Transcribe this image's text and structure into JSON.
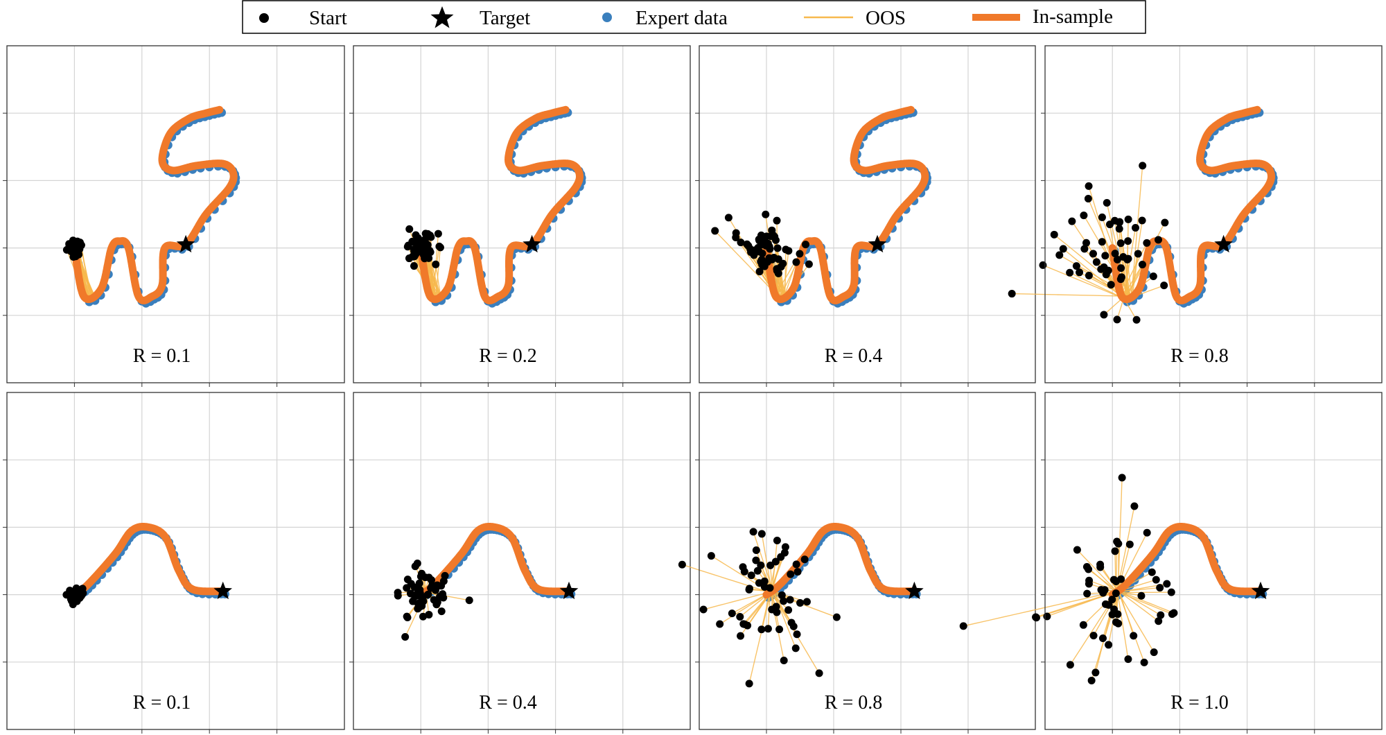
{
  "legend": {
    "items": [
      {
        "id": "start",
        "label": "Start",
        "marker": "dot",
        "color": "#000000"
      },
      {
        "id": "target",
        "label": "Target",
        "marker": "star",
        "color": "#000000"
      },
      {
        "id": "expert",
        "label": "Expert data",
        "marker": "dot",
        "color": "#3a7fbd"
      },
      {
        "id": "oos",
        "label": "OOS",
        "marker": "thin-line",
        "color": "#f7b94e"
      },
      {
        "id": "insample",
        "label": "In-sample",
        "marker": "thick-line",
        "color": "#f0792a"
      }
    ]
  },
  "chart_data": [
    {
      "type": "scatter",
      "shape": "S",
      "panel_label": "R = 0.1",
      "R": 0.1,
      "grid": true,
      "start_center": [
        -1.0,
        0.0
      ],
      "target": [
        0.65,
        0.05
      ]
    },
    {
      "type": "scatter",
      "shape": "S",
      "panel_label": "R = 0.2",
      "R": 0.2,
      "grid": true,
      "start_center": [
        -1.0,
        0.0
      ],
      "target": [
        0.65,
        0.05
      ]
    },
    {
      "type": "scatter",
      "shape": "S",
      "panel_label": "R = 0.4",
      "R": 0.4,
      "grid": true,
      "start_center": [
        -1.0,
        0.0
      ],
      "target": [
        0.65,
        0.05
      ]
    },
    {
      "type": "scatter",
      "shape": "S",
      "panel_label": "R = 0.8",
      "R": 0.8,
      "grid": true,
      "start_center": [
        -1.0,
        0.0
      ],
      "target": [
        0.65,
        0.05
      ]
    },
    {
      "type": "scatter",
      "shape": "bump",
      "panel_label": "R = 0.1",
      "R": 0.1,
      "grid": true,
      "start_center": [
        -1.0,
        0.0
      ],
      "target": [
        1.2,
        0.05
      ]
    },
    {
      "type": "scatter",
      "shape": "bump",
      "panel_label": "R = 0.4",
      "R": 0.4,
      "grid": true,
      "start_center": [
        -1.0,
        0.0
      ],
      "target": [
        1.2,
        0.05
      ]
    },
    {
      "type": "scatter",
      "shape": "bump",
      "panel_label": "R = 0.8",
      "R": 0.8,
      "grid": true,
      "start_center": [
        -1.0,
        0.0
      ],
      "target": [
        1.2,
        0.05
      ]
    },
    {
      "type": "scatter",
      "shape": "bump",
      "panel_label": "R = 1.0",
      "R": 1.0,
      "grid": true,
      "start_center": [
        -1.0,
        0.0
      ],
      "target": [
        1.2,
        0.05
      ]
    }
  ]
}
